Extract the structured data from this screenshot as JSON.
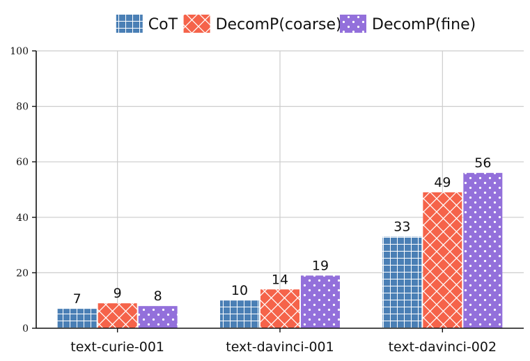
{
  "chart_data": {
    "type": "bar",
    "categories": [
      "text-curie-001",
      "text-davinci-001",
      "text-davinci-002"
    ],
    "series": [
      {
        "name": "CoT",
        "values": [
          7,
          10,
          33
        ],
        "color": "#4a7fb5",
        "pattern": "grid"
      },
      {
        "name": "DecomP(coarse)",
        "values": [
          9,
          14,
          49
        ],
        "color": "#f5634a",
        "pattern": "cross"
      },
      {
        "name": "DecomP(fine)",
        "values": [
          8,
          19,
          56
        ],
        "color": "#9370db",
        "pattern": "dots"
      }
    ],
    "ylim": [
      0,
      100
    ],
    "yticks": [
      0,
      20,
      40,
      60,
      80,
      100
    ],
    "grid": true,
    "legend_position": "top-center",
    "title": "",
    "xlabel": "",
    "ylabel": ""
  }
}
